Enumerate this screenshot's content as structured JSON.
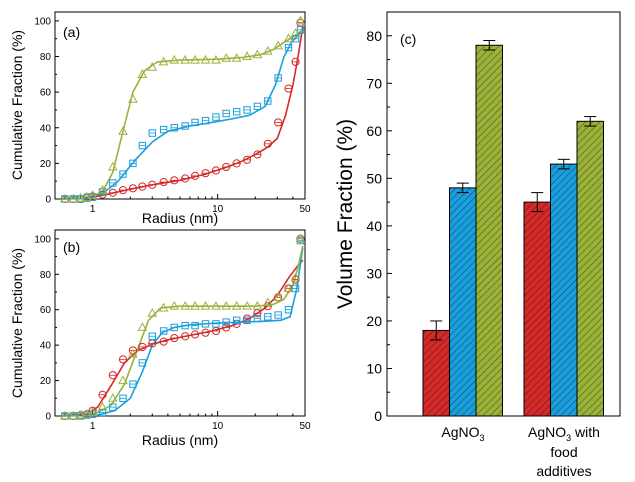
{
  "colors": {
    "red": "#d42a2a",
    "blue": "#1a9fdc",
    "green": "#9ab23a",
    "axis": "#000000"
  },
  "chart_data": [
    {
      "panel": "(a)",
      "type": "scatter",
      "xscale": "log",
      "xlim": [
        0.5,
        50
      ],
      "ylim": [
        0,
        105
      ],
      "xticks": [
        "1",
        "10",
        "50"
      ],
      "yticks": [
        "0",
        "20",
        "40",
        "60",
        "80",
        "100"
      ],
      "xlabel": "Radius (nm)",
      "ylabel": "Cumulative Fraction (%)",
      "series": [
        {
          "color": "red",
          "marker": "circle",
          "points": [
            [
              0.6,
              0
            ],
            [
              0.7,
              0
            ],
            [
              0.8,
              0
            ],
            [
              0.9,
              1
            ],
            [
              1.0,
              1.5
            ],
            [
              1.2,
              2.5
            ],
            [
              1.45,
              3.5
            ],
            [
              1.75,
              5
            ],
            [
              2.1,
              6
            ],
            [
              2.5,
              7
            ],
            [
              3.0,
              8
            ],
            [
              3.7,
              9.5
            ],
            [
              4.5,
              10.5
            ],
            [
              5.5,
              11.5
            ],
            [
              6.6,
              13
            ],
            [
              8.0,
              14.5
            ],
            [
              9.7,
              16
            ],
            [
              11.7,
              18
            ],
            [
              14.2,
              20
            ],
            [
              17.2,
              22
            ],
            [
              20.8,
              25
            ],
            [
              25.2,
              31
            ],
            [
              30.5,
              43
            ],
            [
              36.9,
              62
            ],
            [
              42.0,
              77
            ],
            [
              46.0,
              99
            ]
          ],
          "fit": [
            [
              0.55,
              0
            ],
            [
              0.9,
              0.5
            ],
            [
              1.2,
              2
            ],
            [
              2,
              5.5
            ],
            [
              3,
              8
            ],
            [
              5,
              10.5
            ],
            [
              8,
              14
            ],
            [
              12,
              18
            ],
            [
              16,
              21.5
            ],
            [
              20,
              25
            ],
            [
              25,
              29
            ],
            [
              30,
              34
            ],
            [
              35,
              47
            ],
            [
              40,
              64
            ],
            [
              44,
              80
            ],
            [
              48,
              97
            ]
          ]
        },
        {
          "color": "blue",
          "marker": "square",
          "points": [
            [
              0.6,
              0
            ],
            [
              0.7,
              0
            ],
            [
              0.8,
              0
            ],
            [
              0.9,
              0.5
            ],
            [
              1.0,
              1
            ],
            [
              1.2,
              4
            ],
            [
              1.45,
              9
            ],
            [
              1.75,
              14
            ],
            [
              2.1,
              20
            ],
            [
              2.5,
              30
            ],
            [
              3.0,
              37
            ],
            [
              3.7,
              39
            ],
            [
              4.5,
              40
            ],
            [
              5.5,
              41
            ],
            [
              6.6,
              43
            ],
            [
              8.0,
              44
            ],
            [
              9.7,
              46
            ],
            [
              11.7,
              48
            ],
            [
              14.2,
              49
            ],
            [
              17.2,
              50
            ],
            [
              20.8,
              52
            ],
            [
              25.2,
              55
            ],
            [
              30.5,
              68
            ],
            [
              36.9,
              85
            ],
            [
              42.0,
              90
            ],
            [
              46.0,
              95
            ]
          ],
          "fit": [
            [
              0.55,
              0
            ],
            [
              0.9,
              0.5
            ],
            [
              1.2,
              3
            ],
            [
              1.6,
              10
            ],
            [
              2.2,
              22
            ],
            [
              3,
              32
            ],
            [
              4,
              38
            ],
            [
              6,
              41
            ],
            [
              9,
              43
            ],
            [
              13,
              45
            ],
            [
              18,
              47
            ],
            [
              24,
              52
            ],
            [
              29,
              64
            ],
            [
              34,
              80
            ],
            [
              39,
              88
            ],
            [
              44,
              92
            ],
            [
              48,
              95
            ]
          ]
        },
        {
          "color": "green",
          "marker": "triangle",
          "points": [
            [
              0.6,
              0
            ],
            [
              0.7,
              0
            ],
            [
              0.8,
              0.5
            ],
            [
              0.9,
              1
            ],
            [
              1.0,
              2
            ],
            [
              1.2,
              5
            ],
            [
              1.45,
              18
            ],
            [
              1.75,
              38
            ],
            [
              2.1,
              56
            ],
            [
              2.5,
              70
            ],
            [
              3.0,
              74
            ],
            [
              3.7,
              77
            ],
            [
              4.5,
              78
            ],
            [
              5.5,
              78
            ],
            [
              6.6,
              78
            ],
            [
              8.0,
              78
            ],
            [
              9.7,
              78
            ],
            [
              11.7,
              79
            ],
            [
              14.2,
              79
            ],
            [
              17.2,
              80
            ],
            [
              20.8,
              81
            ],
            [
              25.2,
              83
            ],
            [
              30.5,
              86
            ],
            [
              36.9,
              90
            ],
            [
              42.0,
              93
            ],
            [
              46.0,
              100
            ]
          ],
          "fit": [
            [
              0.55,
              0
            ],
            [
              0.9,
              0.5
            ],
            [
              1.2,
              4
            ],
            [
              1.45,
              15
            ],
            [
              1.75,
              38
            ],
            [
              2.1,
              60
            ],
            [
              2.6,
              72
            ],
            [
              3.3,
              77
            ],
            [
              5,
              78
            ],
            [
              10,
              78.5
            ],
            [
              16,
              79.5
            ],
            [
              22,
              81
            ],
            [
              28,
              84
            ],
            [
              34,
              88
            ],
            [
              40,
              91
            ],
            [
              48,
              95
            ]
          ]
        }
      ]
    },
    {
      "panel": "(b)",
      "type": "scatter",
      "xscale": "log",
      "xlim": [
        0.5,
        50
      ],
      "ylim": [
        0,
        105
      ],
      "xticks": [
        "1",
        "10",
        "50"
      ],
      "yticks": [
        "0",
        "20",
        "40",
        "60",
        "80",
        "100"
      ],
      "xlabel": "Radius (nm)",
      "ylabel": "Cumulative Fraction (%)",
      "series": [
        {
          "color": "red",
          "marker": "circle",
          "points": [
            [
              0.6,
              0
            ],
            [
              0.7,
              0
            ],
            [
              0.8,
              0.5
            ],
            [
              0.9,
              1
            ],
            [
              1.0,
              3
            ],
            [
              1.2,
              12
            ],
            [
              1.45,
              23
            ],
            [
              1.75,
              32
            ],
            [
              2.1,
              37
            ],
            [
              2.5,
              39
            ],
            [
              3.0,
              41
            ],
            [
              3.7,
              42
            ],
            [
              4.5,
              44
            ],
            [
              5.5,
              45
            ],
            [
              6.6,
              46
            ],
            [
              8.0,
              47
            ],
            [
              9.7,
              48
            ],
            [
              11.7,
              50
            ],
            [
              14.2,
              52
            ],
            [
              17.2,
              55
            ],
            [
              20.8,
              58
            ],
            [
              25.2,
              62
            ],
            [
              30.5,
              67
            ],
            [
              36.9,
              72
            ],
            [
              42.0,
              77
            ],
            [
              46.0,
              100
            ]
          ],
          "fit": [
            [
              0.55,
              0
            ],
            [
              0.9,
              1
            ],
            [
              1.1,
              5
            ],
            [
              1.4,
              17
            ],
            [
              1.8,
              30
            ],
            [
              2.3,
              37
            ],
            [
              3,
              40.5
            ],
            [
              4,
              43
            ],
            [
              6,
              45.5
            ],
            [
              9,
              48
            ],
            [
              13,
              51
            ],
            [
              18,
              55
            ],
            [
              24,
              61
            ],
            [
              30,
              68
            ],
            [
              37,
              78
            ],
            [
              44,
              85
            ],
            [
              48,
              88
            ]
          ]
        },
        {
          "color": "blue",
          "marker": "square",
          "points": [
            [
              0.6,
              0
            ],
            [
              0.7,
              0
            ],
            [
              0.8,
              0
            ],
            [
              0.9,
              0.5
            ],
            [
              1.0,
              1
            ],
            [
              1.2,
              2
            ],
            [
              1.45,
              5
            ],
            [
              1.75,
              10
            ],
            [
              2.1,
              18
            ],
            [
              2.5,
              30
            ],
            [
              3.0,
              45
            ],
            [
              3.7,
              48
            ],
            [
              4.5,
              50
            ],
            [
              5.5,
              51
            ],
            [
              6.6,
              51
            ],
            [
              8.0,
              52
            ],
            [
              9.7,
              52
            ],
            [
              11.7,
              53
            ],
            [
              14.2,
              54
            ],
            [
              17.2,
              54
            ],
            [
              20.8,
              55
            ],
            [
              25.2,
              56
            ],
            [
              30.5,
              57
            ],
            [
              36.9,
              60
            ],
            [
              42.0,
              72
            ],
            [
              46.0,
              99
            ]
          ],
          "fit": [
            [
              0.55,
              0
            ],
            [
              1.1,
              0.5
            ],
            [
              1.5,
              3
            ],
            [
              2,
              10
            ],
            [
              2.5,
              25
            ],
            [
              3,
              40
            ],
            [
              3.6,
              47
            ],
            [
              4.5,
              50
            ],
            [
              6,
              51.5
            ],
            [
              10,
              52.5
            ],
            [
              16,
              53
            ],
            [
              24,
              53.5
            ],
            [
              32,
              54
            ],
            [
              38,
              56
            ],
            [
              43,
              72
            ],
            [
              48,
              95
            ]
          ]
        },
        {
          "color": "green",
          "marker": "triangle",
          "points": [
            [
              0.6,
              0
            ],
            [
              0.7,
              0
            ],
            [
              0.8,
              0.5
            ],
            [
              0.9,
              1
            ],
            [
              1.0,
              2
            ],
            [
              1.2,
              5
            ],
            [
              1.45,
              10
            ],
            [
              1.75,
              20
            ],
            [
              2.1,
              35
            ],
            [
              2.5,
              50
            ],
            [
              3.0,
              58
            ],
            [
              3.7,
              61
            ],
            [
              4.5,
              62
            ],
            [
              5.5,
              62
            ],
            [
              6.6,
              62
            ],
            [
              8.0,
              62
            ],
            [
              9.7,
              62
            ],
            [
              11.7,
              62
            ],
            [
              14.2,
              62
            ],
            [
              17.2,
              62
            ],
            [
              20.8,
              62
            ],
            [
              25.2,
              64
            ],
            [
              30.5,
              67
            ],
            [
              36.9,
              72
            ],
            [
              42.0,
              78
            ],
            [
              46.0,
              100
            ]
          ],
          "fit": [
            [
              0.55,
              0
            ],
            [
              1,
              0.5
            ],
            [
              1.4,
              6
            ],
            [
              1.8,
              18
            ],
            [
              2.3,
              38
            ],
            [
              2.8,
              54
            ],
            [
              3.5,
              61
            ],
            [
              5,
              62
            ],
            [
              10,
              62
            ],
            [
              20,
              62
            ],
            [
              28,
              63
            ],
            [
              34,
              66
            ],
            [
              40,
              74
            ],
            [
              44,
              84
            ],
            [
              48,
              96
            ]
          ]
        }
      ]
    },
    {
      "panel": "(c)",
      "type": "bar",
      "categories": [
        "AgNO3",
        "AgNO3 with food additives"
      ],
      "ylabel": "Volume Fraction (%)",
      "ylim": [
        0,
        85
      ],
      "yticks": [
        "0",
        "10",
        "20",
        "30",
        "40",
        "50",
        "60",
        "70",
        "80"
      ],
      "series": [
        {
          "color": "red",
          "values": [
            18,
            45
          ],
          "errors": [
            2,
            2
          ]
        },
        {
          "color": "blue",
          "values": [
            48,
            53
          ],
          "errors": [
            1,
            1
          ]
        },
        {
          "color": "green",
          "values": [
            78,
            62
          ],
          "errors": [
            1,
            1
          ]
        }
      ]
    }
  ],
  "labels": {
    "panel_a": "(a)",
    "panel_b": "(b)",
    "panel_c": "(c)",
    "xlabel_a": "Radius (nm)",
    "xlabel_b": "Radius (nm)",
    "ylabel_a": "Cumulative Fraction (%)",
    "ylabel_b": "Cumulative Fraction (%)",
    "ylabel_c": "Volume Fraction (%)",
    "cat1_main": "AgNO",
    "cat1_sub": "3",
    "cat2_main": "AgNO",
    "cat2_sub": "3",
    "cat2_rest": " with",
    "cat2_line2": "food",
    "cat2_line3": "additives"
  }
}
